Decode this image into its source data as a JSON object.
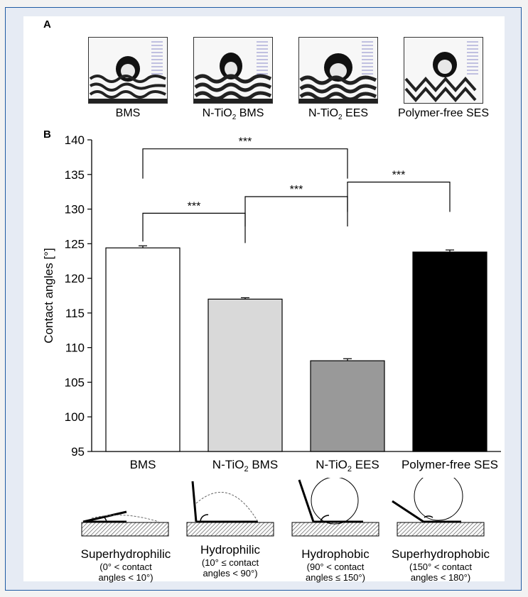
{
  "panels": {
    "a": "A",
    "b": "B"
  },
  "photos": [
    {
      "caption": "BMS"
    },
    {
      "caption_pre": "N-TiO",
      "caption_sub": "2",
      "caption_post": " BMS"
    },
    {
      "caption_pre": "N-TiO",
      "caption_sub": "2",
      "caption_post": " EES"
    },
    {
      "caption": "Polymer-free SES"
    }
  ],
  "chart_data": {
    "type": "bar",
    "categories": [
      "BMS",
      "N-TiO2 BMS",
      "N-TiO2 EES",
      "Polymer-free SES"
    ],
    "values": [
      124.4,
      117.0,
      108.1,
      123.8
    ],
    "errors": [
      0.3,
      0.2,
      0.3,
      0.3
    ],
    "colors": [
      "#ffffff",
      "#d9d9d9",
      "#999999",
      "#000000"
    ],
    "ylabel": "Contact angles [°]",
    "xlabel": "",
    "ylim": [
      95,
      140
    ],
    "yticks": [
      95,
      100,
      105,
      110,
      115,
      120,
      125,
      130,
      135,
      140
    ],
    "significance": [
      {
        "from": 0,
        "to": 2,
        "label": "***",
        "level": 138.7
      },
      {
        "from": 0,
        "to": 1,
        "label": "***",
        "level": 129.4
      },
      {
        "from": 1,
        "to": 2,
        "label": "***",
        "level": 131.8
      },
      {
        "from": 2,
        "to": 3,
        "label": "***",
        "level": 133.9
      }
    ]
  },
  "wetting": [
    {
      "title": "Superhydrophilic",
      "line1": "(0° < contact",
      "line2": "angles < 10°)"
    },
    {
      "title": "Hydrophilic",
      "line1": "(10° ≤ contact",
      "line2": "angles < 90°)"
    },
    {
      "title": "Hydrophobic",
      "line1": "(90° < contact",
      "line2": "angles ≤ 150°)"
    },
    {
      "title": "Superhydrophobic",
      "line1": "(150° < contact",
      "line2": "angles < 180°)"
    }
  ]
}
